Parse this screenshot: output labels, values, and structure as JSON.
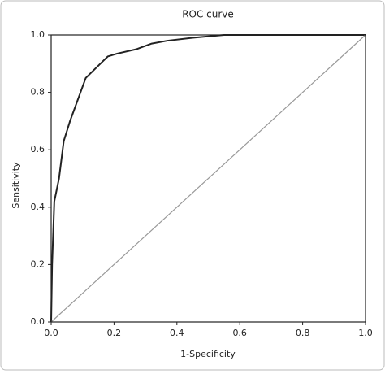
{
  "chart_data": {
    "type": "line",
    "title": "ROC curve",
    "x_label": "1-Specificity",
    "y_label": "Sensitivity",
    "xlim": [
      0,
      1
    ],
    "ylim": [
      0,
      1
    ],
    "xticks": [
      {
        "value": 0,
        "label": "0.0"
      },
      0.2,
      0.4,
      0.6,
      0.8,
      {
        "value": 1,
        "label": "1.0"
      }
    ],
    "yticks": [
      {
        "value": 0,
        "label": "0.0"
      },
      0.2,
      0.4,
      0.6,
      0.8,
      {
        "value": 1,
        "label": "1.0"
      }
    ],
    "grid": false,
    "series": [
      {
        "color": "#222222",
        "x": [
          0,
          0.003,
          0.01,
          0.025,
          0.04,
          0.06,
          0.11,
          0.18,
          0.21,
          0.27,
          0.32,
          0.37,
          0.45,
          0.55,
          0.85,
          1.0
        ],
        "values": [
          0,
          0.2,
          0.42,
          0.5,
          0.63,
          0.7,
          0.85,
          0.925,
          0.935,
          0.95,
          0.97,
          0.98,
          0.99,
          1.0,
          1.0,
          1.0
        ]
      },
      {
        "color": "#999999",
        "x": [
          0,
          1
        ],
        "values": [
          0,
          1
        ]
      }
    ]
  }
}
